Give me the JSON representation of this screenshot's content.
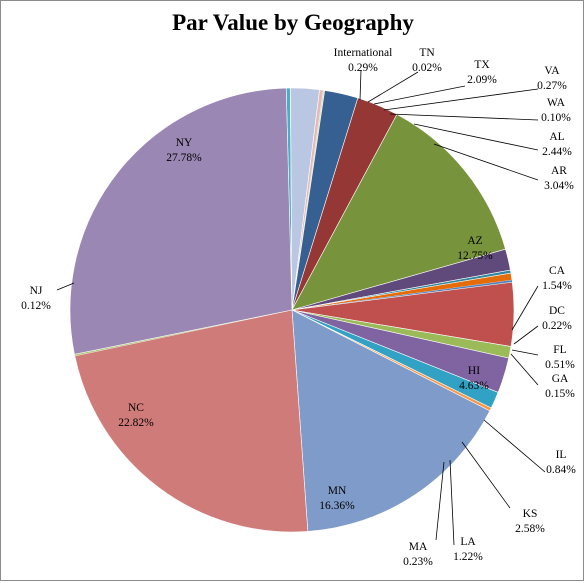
{
  "chart_data": {
    "type": "pie",
    "title": "Par Value by Geography",
    "grid": false,
    "legend": "none",
    "slices": [
      {
        "label": "International",
        "value": 0.29,
        "display": "0.29%",
        "color": "#4bacc6"
      },
      {
        "label": "TN",
        "value": 0.02,
        "display": "0.02%",
        "color": "#f79646"
      },
      {
        "label": "TX",
        "value": 2.09,
        "display": "2.09%",
        "color": "#b9c7e2"
      },
      {
        "label": "VA",
        "value": 0.27,
        "display": "0.27%",
        "color": "#e6b9b8"
      },
      {
        "label": "WA",
        "value": 0.1,
        "display": "0.10%",
        "color": "#d7e4bd"
      },
      {
        "label": "AL",
        "value": 2.44,
        "display": "2.44%",
        "color": "#376092"
      },
      {
        "label": "AR",
        "value": 3.04,
        "display": "3.04%",
        "color": "#953735"
      },
      {
        "label": "AZ",
        "value": 12.75,
        "display": "12.75%",
        "color": "#77933c"
      },
      {
        "label": "CA",
        "value": 1.54,
        "display": "1.54%",
        "color": "#604a7b"
      },
      {
        "label": "DC",
        "value": 0.22,
        "display": "0.22%",
        "color": "#31859c"
      },
      {
        "label": "FL",
        "value": 0.51,
        "display": "0.51%",
        "color": "#e46c0a"
      },
      {
        "label": "GA",
        "value": 0.15,
        "display": "0.15%",
        "color": "#4f81bd"
      },
      {
        "label": "HI",
        "value": 4.63,
        "display": "4.63%",
        "color": "#c0504d"
      },
      {
        "label": "IL",
        "value": 0.84,
        "display": "0.84%",
        "color": "#9bbb59"
      },
      {
        "label": "KS",
        "value": 2.58,
        "display": "2.58%",
        "color": "#8064a2"
      },
      {
        "label": "LA",
        "value": 1.22,
        "display": "1.22%",
        "color": "#31a2c3"
      },
      {
        "label": "MA",
        "value": 0.23,
        "display": "0.23%",
        "color": "#f79646"
      },
      {
        "label": "MN",
        "value": 16.36,
        "display": "16.36%",
        "color": "#7f9bc9"
      },
      {
        "label": "NC",
        "value": 22.82,
        "display": "22.82%",
        "color": "#cf7b79"
      },
      {
        "label": "NJ",
        "value": 0.12,
        "display": "0.12%",
        "color": "#b2c97d"
      },
      {
        "label": "NY",
        "value": 27.78,
        "display": "27.78%",
        "color": "#9a87b3"
      }
    ]
  }
}
